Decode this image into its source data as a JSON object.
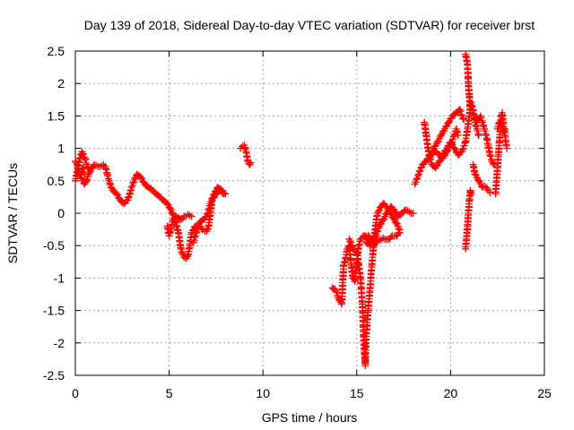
{
  "chart_data": {
    "type": "scatter",
    "title": "Day 139 of 2018, Sidereal Day-to-day VTEC variation (SDTVAR) for receiver brst",
    "xlabel": "GPS time / hours",
    "ylabel": "SDTVAR / TECUs",
    "xlim": [
      0,
      25
    ],
    "ylim": [
      -2.5,
      2.5
    ],
    "xticks": [
      0,
      5,
      10,
      15,
      20,
      25
    ],
    "xtick_labels": [
      "0",
      "5",
      "10",
      "15",
      "20",
      "25"
    ],
    "yticks": [
      -2.5,
      -2,
      -1.5,
      -1,
      -0.5,
      0,
      0.5,
      1,
      1.5,
      2,
      2.5
    ],
    "ytick_labels": [
      "-2.5",
      "-2",
      "-1.5",
      "-1",
      "-0.5",
      "0",
      "0.5",
      "1",
      "1.5",
      "2",
      "2.5"
    ],
    "grid": true,
    "marker": "+",
    "marker_color": "#ff0000",
    "series": [
      {
        "name": "SDTVAR",
        "segments": [
          [
            [
              0.0,
              0.8
            ],
            [
              0.1,
              0.75
            ],
            [
              0.2,
              0.65
            ],
            [
              0.3,
              0.55
            ],
            [
              0.4,
              0.5
            ],
            [
              0.5,
              0.45
            ],
            [
              0.6,
              0.5
            ],
            [
              0.7,
              0.6
            ],
            [
              0.8,
              0.65
            ],
            [
              0.9,
              0.7
            ],
            [
              1.0,
              0.75
            ],
            [
              1.2,
              0.72
            ],
            [
              1.4,
              0.73
            ],
            [
              1.5,
              0.75
            ],
            [
              1.6,
              0.72
            ],
            [
              1.7,
              0.6
            ],
            [
              1.8,
              0.5
            ],
            [
              1.9,
              0.4
            ],
            [
              2.0,
              0.35
            ],
            [
              2.2,
              0.3
            ],
            [
              2.4,
              0.2
            ],
            [
              2.6,
              0.15
            ],
            [
              2.8,
              0.2
            ],
            [
              3.0,
              0.4
            ],
            [
              3.2,
              0.55
            ],
            [
              3.3,
              0.6
            ],
            [
              3.5,
              0.55
            ],
            [
              3.7,
              0.45
            ],
            [
              3.9,
              0.4
            ],
            [
              4.1,
              0.35
            ],
            [
              4.3,
              0.3
            ],
            [
              4.5,
              0.25
            ],
            [
              4.7,
              0.2
            ],
            [
              4.9,
              0.15
            ],
            [
              5.1,
              0.05
            ],
            [
              5.3,
              -0.1
            ],
            [
              5.5,
              -0.3
            ],
            [
              5.6,
              -0.5
            ],
            [
              5.7,
              -0.62
            ],
            [
              5.8,
              -0.68
            ],
            [
              5.9,
              -0.7
            ],
            [
              6.0,
              -0.65
            ],
            [
              6.1,
              -0.5
            ],
            [
              6.2,
              -0.3
            ],
            [
              6.4,
              -0.2
            ],
            [
              6.6,
              -0.2
            ],
            [
              6.8,
              -0.25
            ],
            [
              7.0,
              -0.28
            ],
            [
              7.1,
              -0.2
            ],
            [
              7.2,
              0.0
            ],
            [
              7.3,
              0.2
            ],
            [
              7.5,
              0.3
            ],
            [
              7.7,
              0.35
            ],
            [
              7.9,
              0.3
            ]
          ],
          [
            [
              0.0,
              0.5
            ],
            [
              0.2,
              0.8
            ],
            [
              0.35,
              0.95
            ],
            [
              0.5,
              0.85
            ],
            [
              0.6,
              0.75
            ],
            [
              0.7,
              0.7
            ]
          ],
          [
            [
              0.3,
              0.6
            ],
            [
              0.4,
              0.7
            ],
            [
              0.5,
              0.6
            ]
          ],
          [
            [
              4.9,
              -0.2
            ],
            [
              5.0,
              -0.35
            ],
            [
              5.1,
              -0.25
            ],
            [
              5.2,
              -0.1
            ],
            [
              5.4,
              -0.05
            ],
            [
              5.6,
              -0.1
            ],
            [
              5.8,
              -0.05
            ],
            [
              6.0,
              -0.02
            ],
            [
              6.2,
              -0.05
            ]
          ],
          [
            [
              6.3,
              -0.45
            ],
            [
              6.4,
              -0.35
            ],
            [
              6.5,
              -0.25
            ],
            [
              6.6,
              -0.15
            ],
            [
              6.8,
              -0.1
            ],
            [
              7.0,
              -0.05
            ],
            [
              7.1,
              0.05
            ],
            [
              7.2,
              0.15
            ],
            [
              7.4,
              0.3
            ],
            [
              7.6,
              0.4
            ],
            [
              7.8,
              0.35
            ],
            [
              8.0,
              0.3
            ]
          ],
          [
            [
              8.8,
              1.0
            ],
            [
              8.9,
              1.03
            ],
            [
              9.0,
              1.05
            ],
            [
              9.1,
              0.95
            ],
            [
              9.2,
              0.8
            ],
            [
              9.3,
              0.75
            ],
            [
              9.35,
              0.78
            ]
          ],
          [
            [
              13.7,
              -1.15
            ],
            [
              13.9,
              -1.2
            ],
            [
              14.0,
              -1.3
            ],
            [
              14.1,
              -1.35
            ],
            [
              14.2,
              -1.4
            ],
            [
              14.3,
              -0.8
            ],
            [
              14.4,
              -0.7
            ],
            [
              14.5,
              -0.55
            ],
            [
              14.6,
              -0.5
            ],
            [
              14.7,
              -0.8
            ],
            [
              14.8,
              -1.0
            ],
            [
              14.9,
              -1.05
            ],
            [
              15.0,
              -0.75
            ],
            [
              15.1,
              -0.5
            ],
            [
              15.2,
              -0.4
            ],
            [
              15.4,
              -0.35
            ],
            [
              15.6,
              -0.4
            ],
            [
              15.8,
              -0.45
            ],
            [
              16.0,
              -0.35
            ],
            [
              16.2,
              -0.2
            ],
            [
              16.4,
              -0.1
            ],
            [
              16.6,
              0.0
            ],
            [
              16.8,
              0.1
            ],
            [
              17.0,
              0.05
            ],
            [
              17.2,
              -0.05
            ],
            [
              17.4,
              0.0
            ],
            [
              17.6,
              0.05
            ],
            [
              17.8,
              0.02
            ],
            [
              18.0,
              0.0
            ]
          ],
          [
            [
              14.6,
              -0.4
            ],
            [
              14.8,
              -0.55
            ],
            [
              15.0,
              -0.6
            ],
            [
              15.2,
              -1.0
            ],
            [
              15.3,
              -1.4
            ],
            [
              15.35,
              -1.8
            ],
            [
              15.4,
              -2.1
            ],
            [
              15.45,
              -2.35
            ],
            [
              15.5,
              -1.9
            ],
            [
              15.6,
              -1.5
            ],
            [
              15.7,
              -1.2
            ],
            [
              15.8,
              -0.8
            ],
            [
              15.9,
              -0.5
            ],
            [
              16.0,
              -0.2
            ],
            [
              16.1,
              0.0
            ],
            [
              16.2,
              0.05
            ],
            [
              16.3,
              0.1
            ],
            [
              16.4,
              0.15
            ],
            [
              16.6,
              0.1
            ],
            [
              16.8,
              0.0
            ],
            [
              17.0,
              -0.1
            ],
            [
              17.2,
              -0.2
            ],
            [
              17.3,
              -0.3
            ],
            [
              17.1,
              -0.35
            ],
            [
              16.9,
              -0.35
            ],
            [
              16.7,
              -0.4
            ],
            [
              16.5,
              -0.4
            ]
          ],
          [
            [
              15.4,
              -0.38
            ],
            [
              15.6,
              -0.35
            ],
            [
              15.8,
              -0.4
            ],
            [
              16.0,
              -0.45
            ],
            [
              16.2,
              -0.42
            ],
            [
              16.4,
              -0.38
            ]
          ],
          [
            [
              15.5,
              -0.45
            ],
            [
              15.7,
              -0.5
            ],
            [
              15.9,
              -0.5
            ],
            [
              16.1,
              -0.4
            ]
          ],
          [
            [
              18.1,
              0.45
            ],
            [
              18.3,
              0.6
            ],
            [
              18.5,
              0.75
            ],
            [
              18.7,
              0.8
            ],
            [
              18.9,
              0.9
            ],
            [
              19.1,
              1.0
            ],
            [
              19.3,
              1.1
            ],
            [
              19.5,
              1.2
            ],
            [
              19.7,
              1.3
            ],
            [
              19.9,
              1.4
            ],
            [
              20.1,
              1.5
            ],
            [
              20.3,
              1.55
            ],
            [
              20.5,
              1.6
            ],
            [
              20.6,
              1.5
            ],
            [
              20.7,
              1.45
            ]
          ],
          [
            [
              18.6,
              1.4
            ],
            [
              18.7,
              1.2
            ],
            [
              18.8,
              1.0
            ],
            [
              18.9,
              0.85
            ],
            [
              19.0,
              0.75
            ],
            [
              19.2,
              0.7
            ],
            [
              19.4,
              0.8
            ],
            [
              19.6,
              0.9
            ],
            [
              19.8,
              1.0
            ],
            [
              20.0,
              1.1
            ],
            [
              20.2,
              1.0
            ],
            [
              20.4,
              0.9
            ],
            [
              20.6,
              0.95
            ],
            [
              20.8,
              1.1
            ],
            [
              20.9,
              1.3
            ],
            [
              21.0,
              1.5
            ],
            [
              21.1,
              1.7
            ],
            [
              21.2,
              1.6
            ],
            [
              21.3,
              1.4
            ],
            [
              21.4,
              1.3
            ],
            [
              21.5,
              1.2
            ]
          ],
          [
            [
              19.0,
              0.9
            ],
            [
              19.2,
              0.95
            ],
            [
              19.4,
              0.9
            ],
            [
              19.6,
              0.85
            ],
            [
              19.8,
              0.95
            ],
            [
              20.0,
              1.05
            ],
            [
              20.2,
              1.2
            ],
            [
              20.3,
              1.3
            ],
            [
              20.4,
              1.2
            ]
          ],
          [
            [
              20.8,
              2.45
            ],
            [
              20.9,
              2.3
            ],
            [
              20.95,
              2.0
            ],
            [
              21.0,
              1.8
            ],
            [
              21.05,
              1.6
            ]
          ],
          [
            [
              20.8,
              -0.55
            ],
            [
              20.85,
              -0.4
            ],
            [
              20.9,
              -0.2
            ],
            [
              20.95,
              0.0
            ],
            [
              21.0,
              0.2
            ],
            [
              21.05,
              0.35
            ],
            [
              21.1,
              0.3
            ]
          ],
          [
            [
              21.2,
              0.75
            ],
            [
              21.3,
              0.6
            ],
            [
              21.4,
              0.55
            ],
            [
              21.5,
              0.5
            ],
            [
              21.6,
              0.45
            ],
            [
              21.7,
              0.4
            ],
            [
              21.8,
              0.42
            ],
            [
              21.9,
              0.4
            ],
            [
              22.0,
              0.35
            ],
            [
              22.1,
              0.32
            ]
          ],
          [
            [
              21.3,
              1.5
            ],
            [
              21.4,
              1.4
            ],
            [
              21.5,
              1.45
            ],
            [
              21.6,
              1.5
            ],
            [
              21.7,
              1.4
            ],
            [
              21.8,
              1.3
            ],
            [
              21.9,
              1.2
            ],
            [
              22.0,
              1.05
            ],
            [
              22.1,
              0.9
            ],
            [
              22.2,
              0.8
            ],
            [
              22.3,
              0.75
            ]
          ],
          [
            [
              22.4,
              0.3
            ],
            [
              22.45,
              0.5
            ],
            [
              22.5,
              0.7
            ],
            [
              22.55,
              0.9
            ],
            [
              22.6,
              1.1
            ],
            [
              22.65,
              1.3
            ],
            [
              22.7,
              1.5
            ],
            [
              22.75,
              1.55
            ],
            [
              22.8,
              1.4
            ],
            [
              22.85,
              1.3
            ],
            [
              22.9,
              1.2
            ],
            [
              22.95,
              1.1
            ],
            [
              23.0,
              1.0
            ]
          ],
          [
            [
              22.5,
              1.3
            ],
            [
              22.6,
              1.4
            ],
            [
              22.7,
              1.35
            ],
            [
              22.8,
              1.25
            ],
            [
              22.9,
              1.3
            ]
          ]
        ]
      }
    ]
  }
}
